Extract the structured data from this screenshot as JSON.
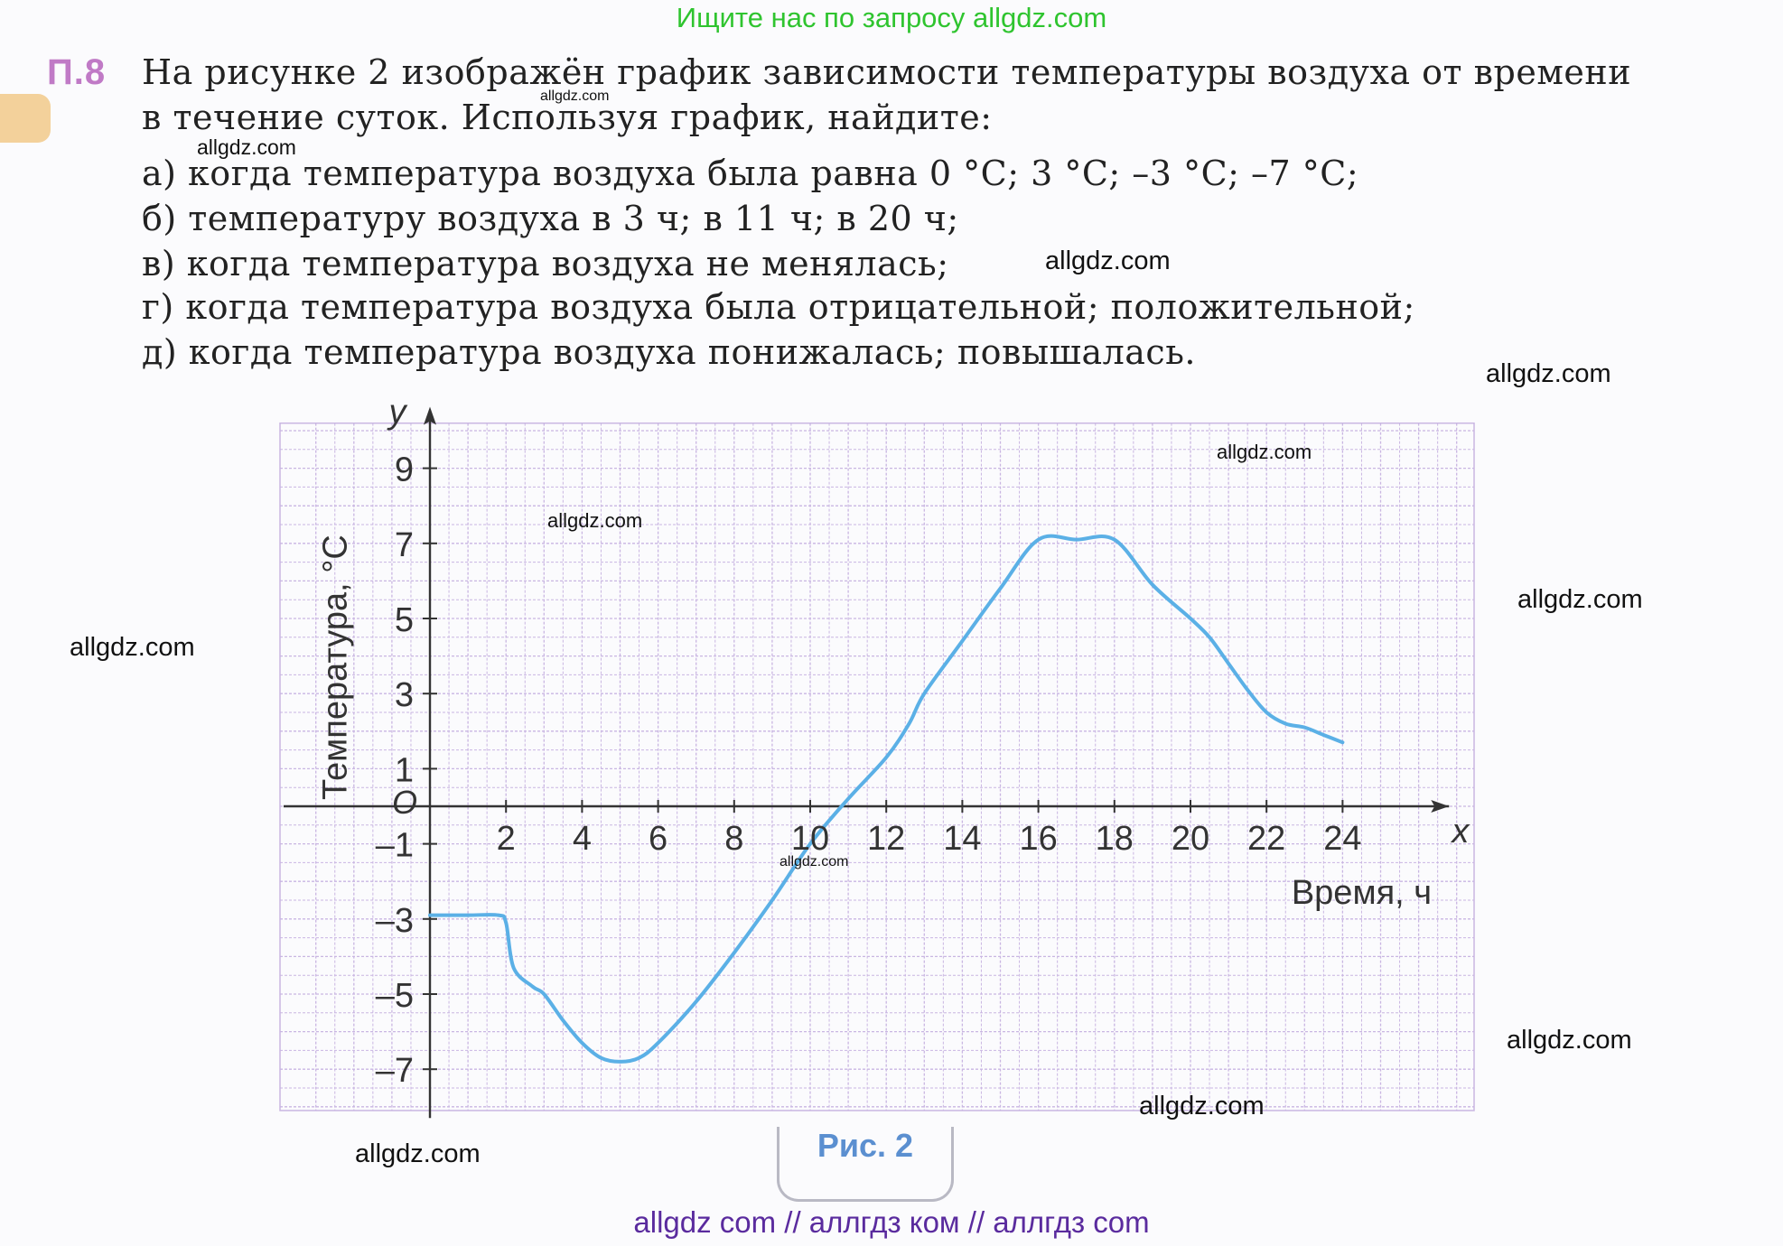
{
  "top_banner": "Ищите нас по запросу allgdz.com",
  "bottom_banner": "allgdz com  //  аллгдз ком  //  аллгдз com",
  "problem": {
    "number": "П.8",
    "intro_line1": "На рисунке 2 изображён график зависимости температуры воздуха от времени",
    "intro_line2": "в течение суток. Используя график, найдите:",
    "items": [
      "а) когда температура воздуха была равна 0 °С; 3 °С; –3 °С; –7 °С;",
      "б) температуру воздуха в 3 ч; в 11 ч; в 20 ч;",
      "в) когда температура воздуха не менялась;",
      "г) когда температура воздуха была отрицательной; положительной;",
      "д) когда температура воздуха понижалась; повышалась."
    ]
  },
  "figure_caption": "Рис. 2",
  "watermark": "allgdz.com",
  "chart_data": {
    "type": "line",
    "xlabel": "Время, ч",
    "ylabel": "Температура, °С",
    "x_axis_letter": "x",
    "y_axis_letter": "y",
    "origin_label": "O",
    "xlim": [
      -2,
      27
    ],
    "ylim": [
      -8,
      10
    ],
    "x_ticks": [
      2,
      4,
      6,
      8,
      10,
      12,
      14,
      16,
      18,
      20,
      22,
      24
    ],
    "y_ticks": [
      -7,
      -5,
      -3,
      -1,
      1,
      3,
      5,
      7,
      9
    ],
    "grid": true,
    "line_color": "#5bb0e6",
    "series": [
      {
        "x": [
          0,
          1,
          1.8,
          2,
          2.2,
          2.7,
          3,
          3.5,
          4,
          4.5,
          5,
          5.5,
          6,
          7,
          8,
          9,
          10,
          11,
          12,
          12.6,
          13,
          14,
          15,
          16,
          17,
          18,
          19,
          20,
          20.5,
          21,
          21.5,
          22,
          22.5,
          23,
          23.5,
          24
        ],
        "y": [
          -2.9,
          -2.9,
          -2.9,
          -3.1,
          -4.3,
          -4.8,
          -5.0,
          -5.7,
          -6.3,
          -6.7,
          -6.8,
          -6.7,
          -6.3,
          -5.2,
          -3.9,
          -2.5,
          -1.0,
          0.2,
          1.3,
          2.2,
          3.0,
          4.4,
          5.8,
          7.1,
          7.1,
          7.1,
          5.9,
          5.0,
          4.5,
          3.8,
          3.1,
          2.5,
          2.2,
          2.1,
          1.9,
          1.7
        ]
      }
    ]
  }
}
